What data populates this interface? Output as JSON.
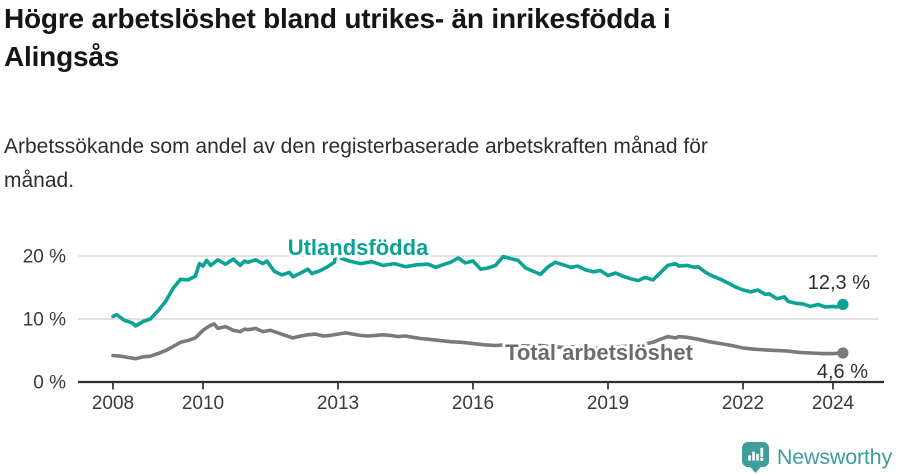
{
  "header": {
    "title_lines": [
      "Högre arbetslöshet bland utrikes- än inrikesfödda i",
      "Alingsås"
    ],
    "subtitle_lines": [
      "Arbetssökande som andel av den registerbaserade arbetskraften månad för",
      "månad."
    ]
  },
  "footer": {
    "brand": "Newsworthy",
    "logo_icon": "speech-bubble-bar-chart-icon",
    "brand_color": "#3f9d9b"
  },
  "chart_data": {
    "type": "line",
    "title": "Högre arbetslöshet bland utrikes- än inrikesfödda i Alingsås",
    "subtitle": "Arbetssökande som andel av den registerbaserade arbetskraften månad för månad.",
    "xlabel": "",
    "ylabel": "",
    "x_unit": "decimal year (monthly data)",
    "x_axis": {
      "ticks": [
        2008,
        2010,
        2013,
        2016,
        2019,
        2022,
        2024
      ],
      "range": [
        2008.0,
        2024.4
      ]
    },
    "y_axis": {
      "range": [
        0,
        22.5
      ],
      "grid": true,
      "ticks": [
        {
          "value": 0,
          "label": "0 %"
        },
        {
          "value": 10,
          "label": "10 %"
        },
        {
          "value": 20,
          "label": "20 %"
        }
      ]
    },
    "legend_position": "inline-labels",
    "axis_color": "#2f2f2f",
    "grid_color": "#d9d9d9",
    "end_label_color": "#2e2e2e",
    "series": [
      {
        "name": "Utlandsfödda",
        "color": "#0aa396",
        "label_color": "#0aa396",
        "end_label": "12,3 %",
        "end_value": 12.3,
        "points": [
          [
            2008.0,
            10.4
          ],
          [
            2008.08,
            10.7
          ],
          [
            2008.25,
            9.8
          ],
          [
            2008.42,
            9.4
          ],
          [
            2008.5,
            8.9
          ],
          [
            2008.67,
            9.6
          ],
          [
            2008.83,
            10.0
          ],
          [
            2009.0,
            11.3
          ],
          [
            2009.17,
            12.8
          ],
          [
            2009.33,
            14.8
          ],
          [
            2009.5,
            16.3
          ],
          [
            2009.67,
            16.2
          ],
          [
            2009.83,
            16.8
          ],
          [
            2009.92,
            18.8
          ],
          [
            2010.0,
            18.4
          ],
          [
            2010.08,
            19.3
          ],
          [
            2010.17,
            18.5
          ],
          [
            2010.33,
            19.4
          ],
          [
            2010.5,
            18.7
          ],
          [
            2010.67,
            19.5
          ],
          [
            2010.83,
            18.5
          ],
          [
            2010.92,
            19.2
          ],
          [
            2011.0,
            19.0
          ],
          [
            2011.17,
            19.4
          ],
          [
            2011.33,
            18.8
          ],
          [
            2011.42,
            19.2
          ],
          [
            2011.58,
            17.6
          ],
          [
            2011.75,
            17.0
          ],
          [
            2011.92,
            17.4
          ],
          [
            2012.0,
            16.7
          ],
          [
            2012.17,
            17.3
          ],
          [
            2012.33,
            17.9
          ],
          [
            2012.42,
            17.2
          ],
          [
            2012.58,
            17.6
          ],
          [
            2012.75,
            18.2
          ],
          [
            2012.92,
            19.0
          ],
          [
            2013.0,
            22.3
          ],
          [
            2013.08,
            19.6
          ],
          [
            2013.25,
            19.2
          ],
          [
            2013.5,
            18.8
          ],
          [
            2013.75,
            19.1
          ],
          [
            2014.0,
            18.5
          ],
          [
            2014.25,
            18.8
          ],
          [
            2014.5,
            18.3
          ],
          [
            2014.75,
            18.6
          ],
          [
            2015.0,
            18.7
          ],
          [
            2015.17,
            18.2
          ],
          [
            2015.33,
            18.6
          ],
          [
            2015.5,
            19.0
          ],
          [
            2015.67,
            19.7
          ],
          [
            2015.83,
            18.9
          ],
          [
            2016.0,
            19.2
          ],
          [
            2016.17,
            17.9
          ],
          [
            2016.33,
            18.1
          ],
          [
            2016.5,
            18.5
          ],
          [
            2016.67,
            19.9
          ],
          [
            2016.83,
            19.6
          ],
          [
            2017.0,
            19.3
          ],
          [
            2017.17,
            18.1
          ],
          [
            2017.33,
            17.6
          ],
          [
            2017.5,
            17.1
          ],
          [
            2017.67,
            18.3
          ],
          [
            2017.83,
            19.0
          ],
          [
            2018.0,
            18.6
          ],
          [
            2018.17,
            18.2
          ],
          [
            2018.33,
            18.4
          ],
          [
            2018.5,
            17.8
          ],
          [
            2018.67,
            17.5
          ],
          [
            2018.83,
            17.7
          ],
          [
            2019.0,
            16.9
          ],
          [
            2019.17,
            17.3
          ],
          [
            2019.33,
            16.8
          ],
          [
            2019.5,
            16.4
          ],
          [
            2019.67,
            16.1
          ],
          [
            2019.83,
            16.6
          ],
          [
            2020.0,
            16.2
          ],
          [
            2020.17,
            17.4
          ],
          [
            2020.33,
            18.5
          ],
          [
            2020.5,
            18.8
          ],
          [
            2020.58,
            18.4
          ],
          [
            2020.75,
            18.5
          ],
          [
            2020.92,
            18.2
          ],
          [
            2021.0,
            18.3
          ],
          [
            2021.17,
            17.4
          ],
          [
            2021.33,
            16.8
          ],
          [
            2021.5,
            16.3
          ],
          [
            2021.67,
            15.7
          ],
          [
            2021.83,
            15.1
          ],
          [
            2022.0,
            14.6
          ],
          [
            2022.17,
            14.3
          ],
          [
            2022.33,
            14.6
          ],
          [
            2022.5,
            13.9
          ],
          [
            2022.58,
            14.0
          ],
          [
            2022.75,
            13.2
          ],
          [
            2022.92,
            13.5
          ],
          [
            2023.0,
            12.8
          ],
          [
            2023.17,
            12.5
          ],
          [
            2023.33,
            12.4
          ],
          [
            2023.5,
            12.0
          ],
          [
            2023.67,
            12.3
          ],
          [
            2023.83,
            11.9
          ],
          [
            2024.0,
            12.0
          ],
          [
            2024.08,
            11.9
          ],
          [
            2024.22,
            12.3
          ]
        ]
      },
      {
        "name": "Total arbetslöshet",
        "color": "#797a7d",
        "label_color": "#6b6c70",
        "end_label": "4,6 %",
        "end_value": 4.6,
        "points": [
          [
            2008.0,
            4.2
          ],
          [
            2008.17,
            4.1
          ],
          [
            2008.33,
            3.9
          ],
          [
            2008.5,
            3.7
          ],
          [
            2008.67,
            4.0
          ],
          [
            2008.83,
            4.1
          ],
          [
            2009.0,
            4.5
          ],
          [
            2009.17,
            5.0
          ],
          [
            2009.33,
            5.6
          ],
          [
            2009.5,
            6.3
          ],
          [
            2009.67,
            6.6
          ],
          [
            2009.83,
            7.0
          ],
          [
            2010.0,
            8.2
          ],
          [
            2010.08,
            8.6
          ],
          [
            2010.17,
            9.0
          ],
          [
            2010.25,
            9.2
          ],
          [
            2010.33,
            8.5
          ],
          [
            2010.5,
            8.8
          ],
          [
            2010.67,
            8.2
          ],
          [
            2010.83,
            8.0
          ],
          [
            2010.92,
            8.4
          ],
          [
            2011.0,
            8.3
          ],
          [
            2011.17,
            8.5
          ],
          [
            2011.33,
            8.0
          ],
          [
            2011.5,
            8.2
          ],
          [
            2011.67,
            7.8
          ],
          [
            2011.83,
            7.4
          ],
          [
            2012.0,
            7.0
          ],
          [
            2012.17,
            7.3
          ],
          [
            2012.33,
            7.5
          ],
          [
            2012.5,
            7.6
          ],
          [
            2012.67,
            7.3
          ],
          [
            2012.83,
            7.4
          ],
          [
            2013.0,
            7.6
          ],
          [
            2013.17,
            7.8
          ],
          [
            2013.33,
            7.6
          ],
          [
            2013.5,
            7.4
          ],
          [
            2013.67,
            7.3
          ],
          [
            2013.83,
            7.4
          ],
          [
            2014.0,
            7.5
          ],
          [
            2014.17,
            7.4
          ],
          [
            2014.33,
            7.2
          ],
          [
            2014.5,
            7.3
          ],
          [
            2014.67,
            7.1
          ],
          [
            2014.83,
            6.9
          ],
          [
            2015.0,
            6.8
          ],
          [
            2015.25,
            6.6
          ],
          [
            2015.5,
            6.4
          ],
          [
            2015.75,
            6.3
          ],
          [
            2016.0,
            6.1
          ],
          [
            2016.25,
            5.9
          ],
          [
            2016.5,
            5.8
          ],
          [
            2016.75,
            5.9
          ],
          [
            2017.0,
            5.8
          ],
          [
            2017.25,
            5.7
          ],
          [
            2017.5,
            5.8
          ],
          [
            2017.75,
            5.6
          ],
          [
            2018.0,
            5.5
          ],
          [
            2018.25,
            5.6
          ],
          [
            2018.5,
            5.5
          ],
          [
            2018.75,
            5.4
          ],
          [
            2019.0,
            5.5
          ],
          [
            2019.25,
            5.6
          ],
          [
            2019.5,
            5.7
          ],
          [
            2019.75,
            5.9
          ],
          [
            2020.0,
            6.3
          ],
          [
            2020.17,
            6.8
          ],
          [
            2020.33,
            7.2
          ],
          [
            2020.5,
            7.0
          ],
          [
            2020.58,
            7.2
          ],
          [
            2020.75,
            7.1
          ],
          [
            2021.0,
            6.8
          ],
          [
            2021.25,
            6.4
          ],
          [
            2021.5,
            6.1
          ],
          [
            2021.75,
            5.8
          ],
          [
            2022.0,
            5.4
          ],
          [
            2022.25,
            5.2
          ],
          [
            2022.5,
            5.1
          ],
          [
            2022.75,
            5.0
          ],
          [
            2023.0,
            4.9
          ],
          [
            2023.25,
            4.7
          ],
          [
            2023.5,
            4.6
          ],
          [
            2023.75,
            4.5
          ],
          [
            2024.0,
            4.5
          ],
          [
            2024.22,
            4.6
          ]
        ]
      }
    ]
  }
}
